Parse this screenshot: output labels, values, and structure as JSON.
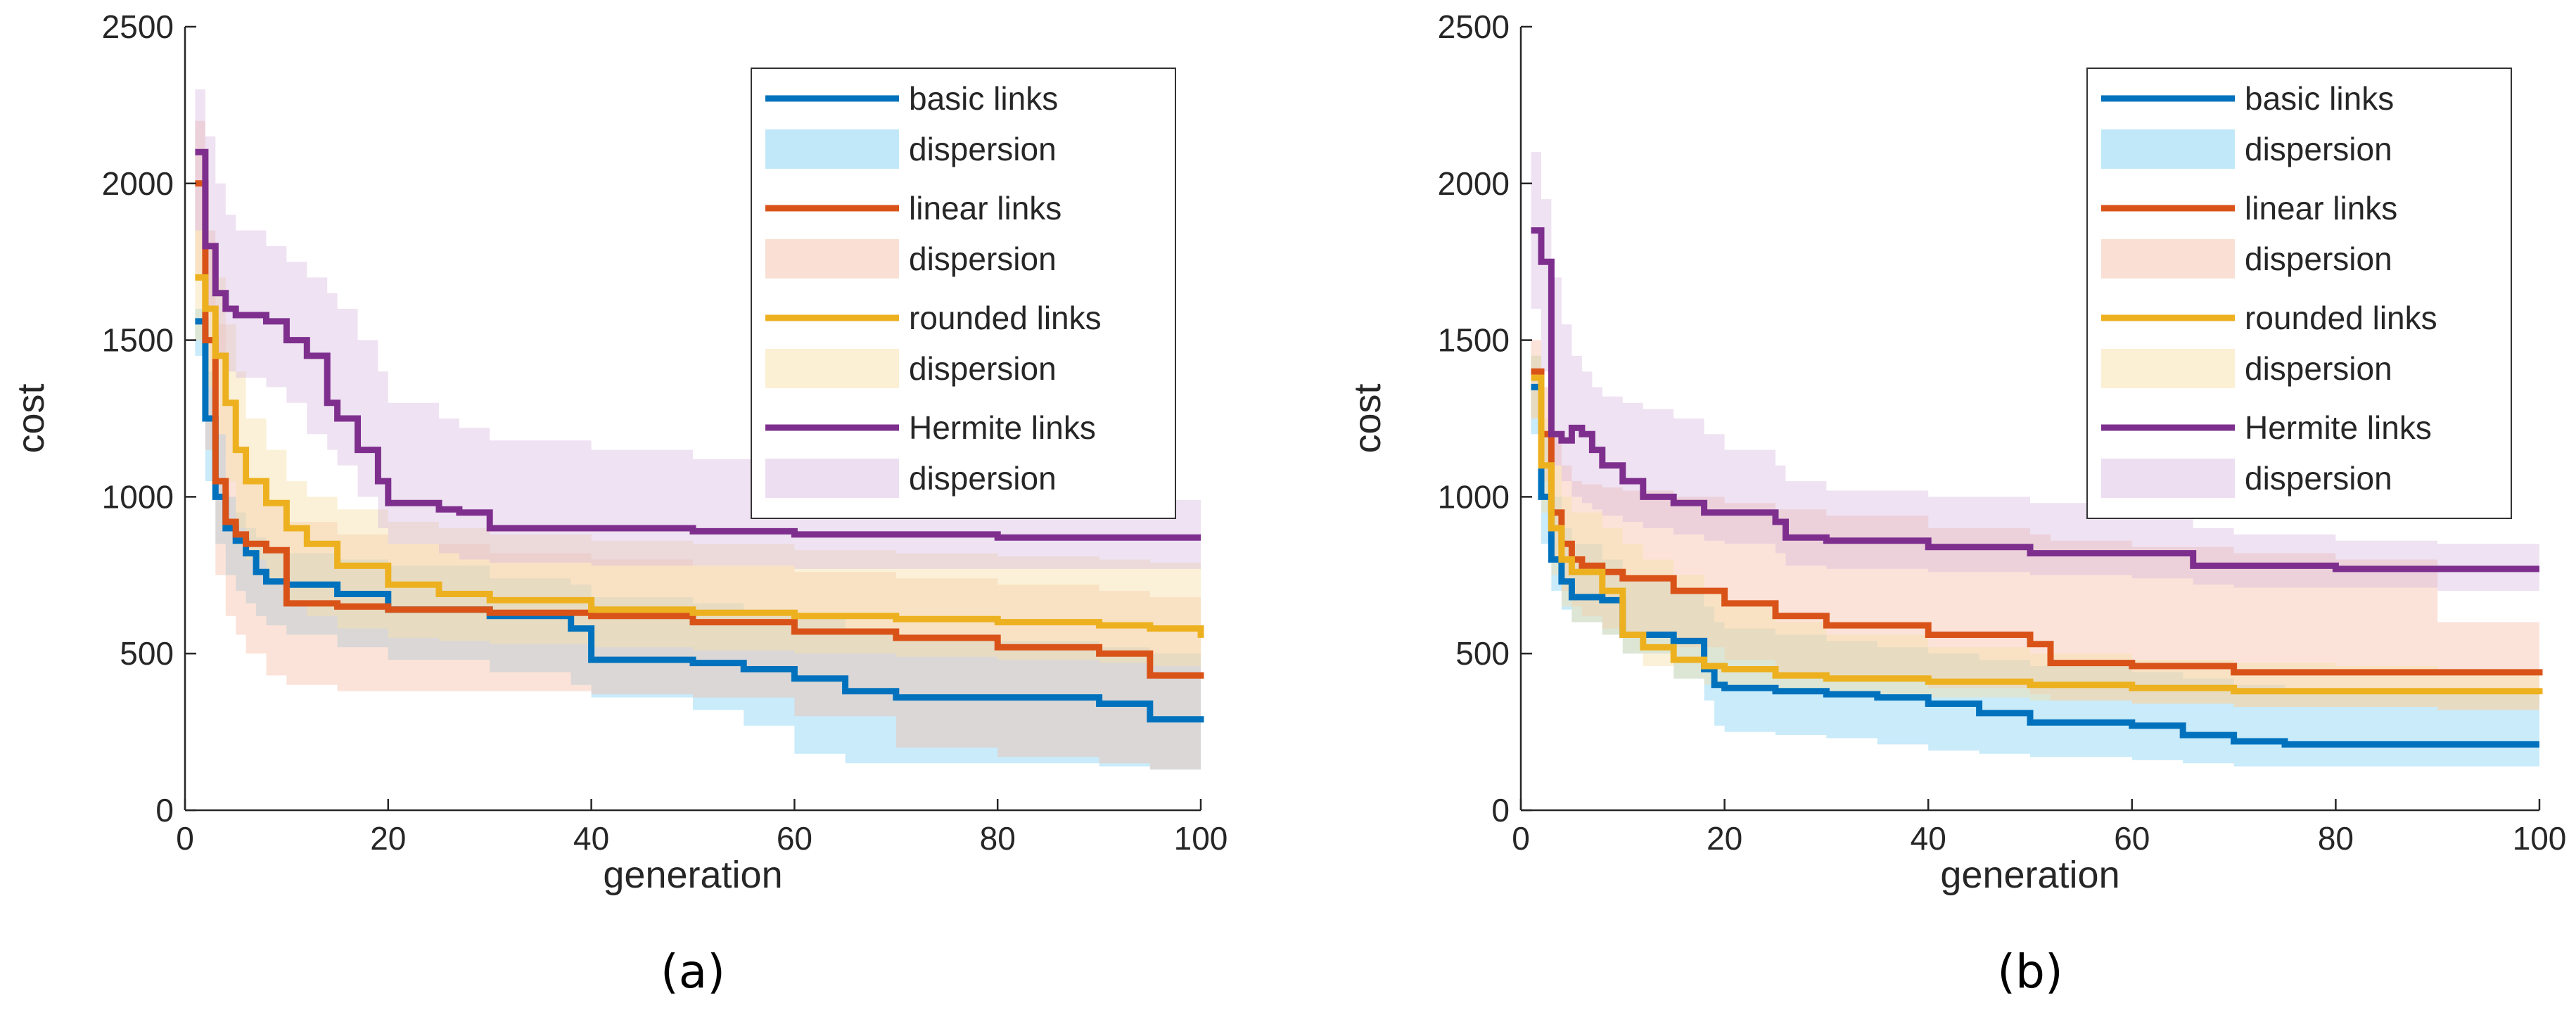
{
  "chart_data": [
    {
      "type": "line",
      "caption": "(a)",
      "xlabel": "generation",
      "ylabel": "cost",
      "xlim": [
        0,
        100
      ],
      "ylim": [
        0,
        2500
      ],
      "xticks": [
        0,
        20,
        40,
        60,
        80,
        100
      ],
      "yticks": [
        0,
        500,
        1000,
        1500,
        2000,
        2500
      ],
      "legend_position": "top-right",
      "series": [
        {
          "name": "basic links",
          "band_name": "dispersion",
          "color": "#0072BD",
          "band_color": "#4DBEEE",
          "x": [
            1,
            2,
            3,
            4,
            5,
            6,
            7,
            8,
            10,
            15,
            20,
            30,
            38,
            40,
            50,
            55,
            60,
            65,
            70,
            80,
            90,
            95,
            100
          ],
          "values": [
            1560,
            1250,
            1000,
            900,
            860,
            820,
            760,
            730,
            720,
            690,
            640,
            620,
            580,
            480,
            470,
            450,
            420,
            380,
            360,
            360,
            340,
            290,
            280
          ],
          "upper": [
            1600,
            1400,
            1200,
            1000,
            950,
            900,
            870,
            840,
            820,
            800,
            780,
            740,
            720,
            680,
            660,
            640,
            620,
            580,
            560,
            540,
            520,
            500,
            480
          ],
          "lower": [
            1450,
            1050,
            850,
            750,
            700,
            660,
            620,
            590,
            560,
            520,
            480,
            440,
            400,
            360,
            320,
            270,
            180,
            150,
            150,
            150,
            140,
            130,
            120
          ]
        },
        {
          "name": "linear links",
          "band_name": "dispersion",
          "color": "#D95319",
          "band_color": "#F5B9A1",
          "x": [
            1,
            2,
            3,
            4,
            5,
            6,
            8,
            10,
            15,
            20,
            30,
            40,
            50,
            60,
            70,
            80,
            90,
            95,
            100
          ],
          "values": [
            2000,
            1500,
            1050,
            920,
            880,
            850,
            830,
            660,
            650,
            640,
            630,
            620,
            600,
            570,
            550,
            520,
            500,
            430,
            440
          ],
          "upper": [
            2200,
            1850,
            1550,
            1300,
            1150,
            1050,
            980,
            920,
            880,
            850,
            820,
            800,
            780,
            760,
            740,
            720,
            700,
            680,
            660
          ],
          "lower": [
            1700,
            1150,
            750,
            620,
            560,
            500,
            430,
            400,
            380,
            380,
            380,
            370,
            360,
            300,
            200,
            170,
            150,
            130,
            120
          ]
        },
        {
          "name": "rounded links",
          "band_name": "dispersion",
          "color": "#EDB120",
          "band_color": "#F7E1A8",
          "x": [
            1,
            2,
            3,
            4,
            5,
            6,
            8,
            10,
            12,
            15,
            20,
            25,
            30,
            40,
            50,
            60,
            70,
            80,
            90,
            95,
            100
          ],
          "values": [
            1700,
            1600,
            1450,
            1300,
            1150,
            1050,
            980,
            900,
            850,
            780,
            720,
            690,
            670,
            640,
            630,
            620,
            610,
            600,
            590,
            580,
            550
          ],
          "upper": [
            1850,
            1800,
            1700,
            1550,
            1400,
            1250,
            1150,
            1050,
            1000,
            960,
            920,
            900,
            880,
            860,
            850,
            830,
            820,
            810,
            800,
            790,
            780
          ],
          "lower": [
            1500,
            1350,
            1200,
            1050,
            900,
            800,
            720,
            660,
            620,
            580,
            550,
            540,
            530,
            520,
            510,
            500,
            490,
            480,
            470,
            460,
            440
          ]
        },
        {
          "name": "Hermite links",
          "band_name": "dispersion",
          "color": "#7E2F8E",
          "band_color": "#D7B6DF",
          "x": [
            1,
            2,
            3,
            4,
            5,
            8,
            10,
            12,
            14,
            15,
            17,
            19,
            20,
            25,
            27,
            30,
            40,
            50,
            60,
            70,
            80,
            90,
            100
          ],
          "values": [
            2100,
            1800,
            1650,
            1600,
            1580,
            1560,
            1500,
            1450,
            1300,
            1250,
            1150,
            1050,
            980,
            960,
            950,
            900,
            900,
            890,
            880,
            880,
            870,
            870,
            870
          ],
          "upper": [
            2300,
            2150,
            2000,
            1900,
            1850,
            1800,
            1750,
            1700,
            1650,
            1600,
            1500,
            1400,
            1300,
            1250,
            1220,
            1180,
            1150,
            1120,
            1080,
            1050,
            1020,
            990,
            970
          ],
          "lower": [
            1850,
            1600,
            1450,
            1400,
            1380,
            1350,
            1300,
            1200,
            1150,
            1100,
            1000,
            900,
            850,
            820,
            800,
            790,
            780,
            780,
            770,
            770,
            770,
            770,
            760
          ]
        }
      ]
    },
    {
      "type": "line",
      "caption": "(b)",
      "xlabel": "generation",
      "ylabel": "cost",
      "xlim": [
        0,
        100
      ],
      "ylim": [
        0,
        2500
      ],
      "xticks": [
        0,
        20,
        40,
        60,
        80,
        100
      ],
      "yticks": [
        0,
        500,
        1000,
        1500,
        2000,
        2500
      ],
      "legend_position": "top-right",
      "series": [
        {
          "name": "basic links",
          "band_name": "dispersion",
          "color": "#0072BD",
          "band_color": "#4DBEEE",
          "x": [
            1,
            2,
            3,
            4,
            5,
            8,
            10,
            15,
            18,
            19,
            20,
            25,
            30,
            35,
            40,
            45,
            50,
            60,
            65,
            70,
            75,
            100
          ],
          "values": [
            1350,
            1000,
            800,
            730,
            680,
            670,
            560,
            540,
            450,
            400,
            390,
            380,
            370,
            360,
            340,
            310,
            280,
            270,
            240,
            220,
            210,
            210
          ],
          "upper": [
            1450,
            1200,
            1000,
            900,
            850,
            800,
            750,
            700,
            650,
            600,
            580,
            560,
            540,
            520,
            500,
            480,
            460,
            440,
            420,
            400,
            380,
            360
          ],
          "lower": [
            1200,
            850,
            700,
            640,
            600,
            560,
            500,
            420,
            350,
            270,
            250,
            240,
            230,
            210,
            190,
            180,
            170,
            160,
            150,
            140,
            140,
            140
          ]
        },
        {
          "name": "linear links",
          "band_name": "dispersion",
          "color": "#D95319",
          "band_color": "#F5B9A1",
          "x": [
            1,
            2,
            3,
            4,
            5,
            6,
            8,
            10,
            15,
            20,
            25,
            30,
            40,
            50,
            52,
            60,
            70,
            80,
            90,
            100
          ],
          "values": [
            1400,
            1200,
            950,
            850,
            800,
            780,
            760,
            740,
            700,
            660,
            620,
            590,
            560,
            530,
            470,
            460,
            440,
            440,
            440,
            430
          ],
          "upper": [
            1500,
            1350,
            1200,
            1100,
            1050,
            1040,
            1030,
            1020,
            1000,
            980,
            960,
            940,
            900,
            880,
            860,
            840,
            820,
            800,
            600,
            580
          ],
          "lower": [
            1250,
            1050,
            800,
            700,
            650,
            620,
            580,
            550,
            520,
            480,
            440,
            420,
            390,
            370,
            350,
            340,
            330,
            330,
            320,
            310
          ]
        },
        {
          "name": "rounded links",
          "band_name": "dispersion",
          "color": "#EDB120",
          "band_color": "#F7E1A8",
          "x": [
            1,
            2,
            3,
            4,
            5,
            8,
            10,
            12,
            15,
            18,
            20,
            25,
            30,
            40,
            50,
            60,
            70,
            80,
            90,
            100
          ],
          "values": [
            1380,
            1100,
            900,
            800,
            760,
            700,
            560,
            520,
            480,
            460,
            450,
            430,
            420,
            410,
            400,
            390,
            380,
            380,
            380,
            370
          ],
          "upper": [
            1450,
            1250,
            1100,
            1000,
            950,
            900,
            850,
            800,
            750,
            700,
            650,
            600,
            560,
            520,
            500,
            480,
            470,
            460,
            450,
            440
          ],
          "lower": [
            1250,
            950,
            750,
            650,
            600,
            560,
            500,
            460,
            420,
            400,
            390,
            380,
            370,
            360,
            350,
            340,
            330,
            330,
            320,
            320
          ]
        },
        {
          "name": "Hermite links",
          "band_name": "dispersion",
          "color": "#7E2F8E",
          "band_color": "#D7B6DF",
          "x": [
            1,
            2,
            3,
            4,
            5,
            6,
            7,
            8,
            10,
            12,
            15,
            18,
            20,
            25,
            26,
            30,
            40,
            50,
            60,
            65,
            66,
            70,
            80,
            90,
            100
          ],
          "values": [
            1850,
            1750,
            1200,
            1180,
            1220,
            1200,
            1150,
            1100,
            1050,
            1000,
            980,
            950,
            950,
            920,
            870,
            860,
            840,
            820,
            820,
            820,
            780,
            780,
            770,
            770,
            770
          ],
          "upper": [
            2100,
            1950,
            1700,
            1550,
            1450,
            1400,
            1350,
            1320,
            1300,
            1280,
            1250,
            1200,
            1150,
            1100,
            1050,
            1020,
            1000,
            980,
            960,
            950,
            900,
            880,
            860,
            850,
            840
          ],
          "lower": [
            1600,
            1400,
            1100,
            1050,
            1000,
            980,
            960,
            940,
            920,
            900,
            880,
            860,
            850,
            820,
            780,
            770,
            760,
            750,
            740,
            740,
            720,
            710,
            710,
            700,
            700
          ]
        }
      ]
    }
  ]
}
